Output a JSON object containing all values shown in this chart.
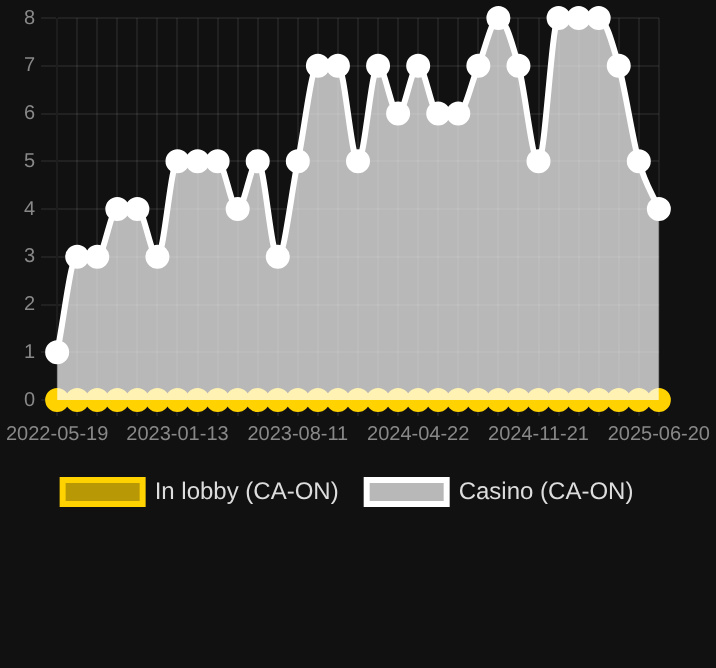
{
  "chart_data": {
    "type": "area",
    "categories": [
      "2022-05-19",
      null,
      null,
      null,
      null,
      null,
      "2023-01-13",
      null,
      null,
      null,
      null,
      null,
      "2023-08-11",
      null,
      null,
      null,
      null,
      null,
      "2024-04-22",
      null,
      null,
      null,
      null,
      null,
      "2024-11-21",
      null,
      null,
      null,
      null,
      null,
      "2025-06-20"
    ],
    "series": [
      {
        "name": "In lobby (CA-ON)",
        "type": "line",
        "color": "#ffd200",
        "values": [
          0,
          0,
          0,
          0,
          0,
          0,
          0,
          0,
          0,
          0,
          0,
          0,
          0,
          0,
          0,
          0,
          0,
          0,
          0,
          0,
          0,
          0,
          0,
          0,
          0,
          0,
          0,
          0,
          0,
          0,
          0
        ]
      },
      {
        "name": "Casino (CA-ON)",
        "color": "#ffffff",
        "values": [
          1,
          3,
          3,
          4,
          4,
          3,
          5,
          5,
          5,
          4,
          5,
          3,
          5,
          7,
          7,
          5,
          7,
          6,
          7,
          6,
          6,
          7,
          8,
          7,
          5,
          8,
          8,
          8,
          7,
          5,
          4
        ]
      }
    ],
    "ylim": [
      0,
      8
    ],
    "yticks": [
      0,
      1,
      2,
      3,
      4,
      5,
      6,
      7,
      8
    ],
    "grid": true,
    "legend": "bottom",
    "marker": "circle",
    "line_style": "solid"
  }
}
